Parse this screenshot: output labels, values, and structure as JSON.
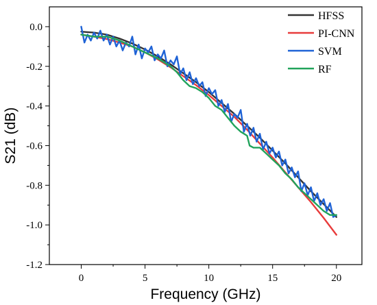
{
  "chart_data": {
    "type": "line",
    "title": "",
    "xlabel": "Frequency (GHz)",
    "ylabel": "S21 (dB)",
    "xlim": [
      -2.5,
      22
    ],
    "ylim": [
      -1.2,
      0.1
    ],
    "x_ticks": [
      0,
      5,
      10,
      15,
      20
    ],
    "x_tick_labels": [
      "0",
      "5",
      "10",
      "15",
      "20"
    ],
    "y_ticks": [
      0.0,
      -0.2,
      -0.4,
      -0.6,
      -0.8,
      -1.0,
      -1.2
    ],
    "y_tick_labels": [
      "0.0",
      "-0.2",
      "-0.4",
      "-0.6",
      "-0.8",
      "-1.0",
      "-1.2"
    ],
    "grid": false,
    "legend_position": "top-right",
    "series": [
      {
        "name": "HFSS",
        "color": "#333333",
        "x": [
          0,
          1,
          2,
          3,
          4,
          5,
          6,
          7,
          8,
          9,
          10,
          11,
          12,
          13,
          14,
          15,
          16,
          17,
          18,
          19,
          20
        ],
        "y": [
          -0.025,
          -0.03,
          -0.04,
          -0.06,
          -0.085,
          -0.115,
          -0.15,
          -0.19,
          -0.235,
          -0.28,
          -0.33,
          -0.385,
          -0.44,
          -0.5,
          -0.56,
          -0.625,
          -0.69,
          -0.76,
          -0.83,
          -0.895,
          -0.96
        ]
      },
      {
        "name": "PI-CNN",
        "color": "#e83b3b",
        "x": [
          0,
          1,
          2,
          3,
          4,
          5,
          6,
          7,
          8,
          9,
          10,
          11,
          12,
          13,
          14,
          15,
          16,
          17,
          18,
          19,
          20
        ],
        "y": [
          -0.04,
          -0.05,
          -0.062,
          -0.08,
          -0.1,
          -0.13,
          -0.165,
          -0.205,
          -0.25,
          -0.295,
          -0.345,
          -0.4,
          -0.455,
          -0.52,
          -0.59,
          -0.66,
          -0.735,
          -0.81,
          -0.885,
          -0.965,
          -1.05
        ]
      },
      {
        "name": "SVM",
        "color": "#1f63d6",
        "x": [
          0,
          0.25,
          0.5,
          0.75,
          1,
          1.25,
          1.5,
          1.75,
          2,
          2.25,
          2.5,
          2.75,
          3,
          3.25,
          3.5,
          3.75,
          4,
          4.25,
          4.5,
          4.75,
          5,
          5.25,
          5.5,
          5.75,
          6,
          6.25,
          6.5,
          6.75,
          7,
          7.25,
          7.5,
          7.75,
          8,
          8.25,
          8.5,
          8.75,
          9,
          9.25,
          9.5,
          9.75,
          10,
          10.25,
          10.5,
          10.75,
          11,
          11.25,
          11.5,
          11.75,
          12,
          12.25,
          12.5,
          12.75,
          13,
          13.25,
          13.5,
          13.75,
          14,
          14.25,
          14.5,
          14.75,
          15,
          15.25,
          15.5,
          15.75,
          16,
          16.25,
          16.5,
          16.75,
          17,
          17.25,
          17.5,
          17.75,
          18,
          18.25,
          18.5,
          18.75,
          19,
          19.25,
          19.5,
          19.75,
          20
        ],
        "y": [
          0.0,
          -0.08,
          -0.04,
          -0.07,
          -0.03,
          -0.06,
          -0.02,
          -0.07,
          -0.04,
          -0.09,
          -0.05,
          -0.1,
          -0.07,
          -0.12,
          -0.08,
          -0.1,
          -0.05,
          -0.14,
          -0.09,
          -0.16,
          -0.11,
          -0.13,
          -0.1,
          -0.17,
          -0.14,
          -0.16,
          -0.12,
          -0.2,
          -0.17,
          -0.19,
          -0.15,
          -0.24,
          -0.21,
          -0.27,
          -0.23,
          -0.29,
          -0.26,
          -0.3,
          -0.28,
          -0.35,
          -0.31,
          -0.34,
          -0.32,
          -0.4,
          -0.37,
          -0.43,
          -0.39,
          -0.48,
          -0.44,
          -0.46,
          -0.42,
          -0.53,
          -0.49,
          -0.55,
          -0.51,
          -0.58,
          -0.54,
          -0.62,
          -0.58,
          -0.64,
          -0.61,
          -0.66,
          -0.63,
          -0.7,
          -0.67,
          -0.74,
          -0.71,
          -0.76,
          -0.73,
          -0.83,
          -0.79,
          -0.85,
          -0.81,
          -0.88,
          -0.84,
          -0.9,
          -0.87,
          -0.93,
          -0.89,
          -0.96,
          -0.95
        ]
      },
      {
        "name": "RF",
        "color": "#21a35b",
        "x": [
          0,
          1,
          2,
          3,
          4,
          5,
          6,
          6.5,
          7,
          7.5,
          8,
          8.5,
          9,
          9.5,
          10,
          10.5,
          11,
          11.5,
          12,
          12.5,
          13,
          13.2,
          13.5,
          14,
          14.5,
          15,
          15.5,
          16,
          16.5,
          17,
          17.5,
          18,
          18.5,
          19,
          19.5,
          20
        ],
        "y": [
          -0.04,
          -0.05,
          -0.05,
          -0.07,
          -0.1,
          -0.13,
          -0.16,
          -0.18,
          -0.2,
          -0.23,
          -0.27,
          -0.3,
          -0.31,
          -0.33,
          -0.36,
          -0.4,
          -0.42,
          -0.46,
          -0.5,
          -0.53,
          -0.55,
          -0.6,
          -0.61,
          -0.61,
          -0.64,
          -0.67,
          -0.7,
          -0.74,
          -0.77,
          -0.81,
          -0.84,
          -0.87,
          -0.9,
          -0.93,
          -0.95,
          -0.95
        ]
      }
    ]
  }
}
